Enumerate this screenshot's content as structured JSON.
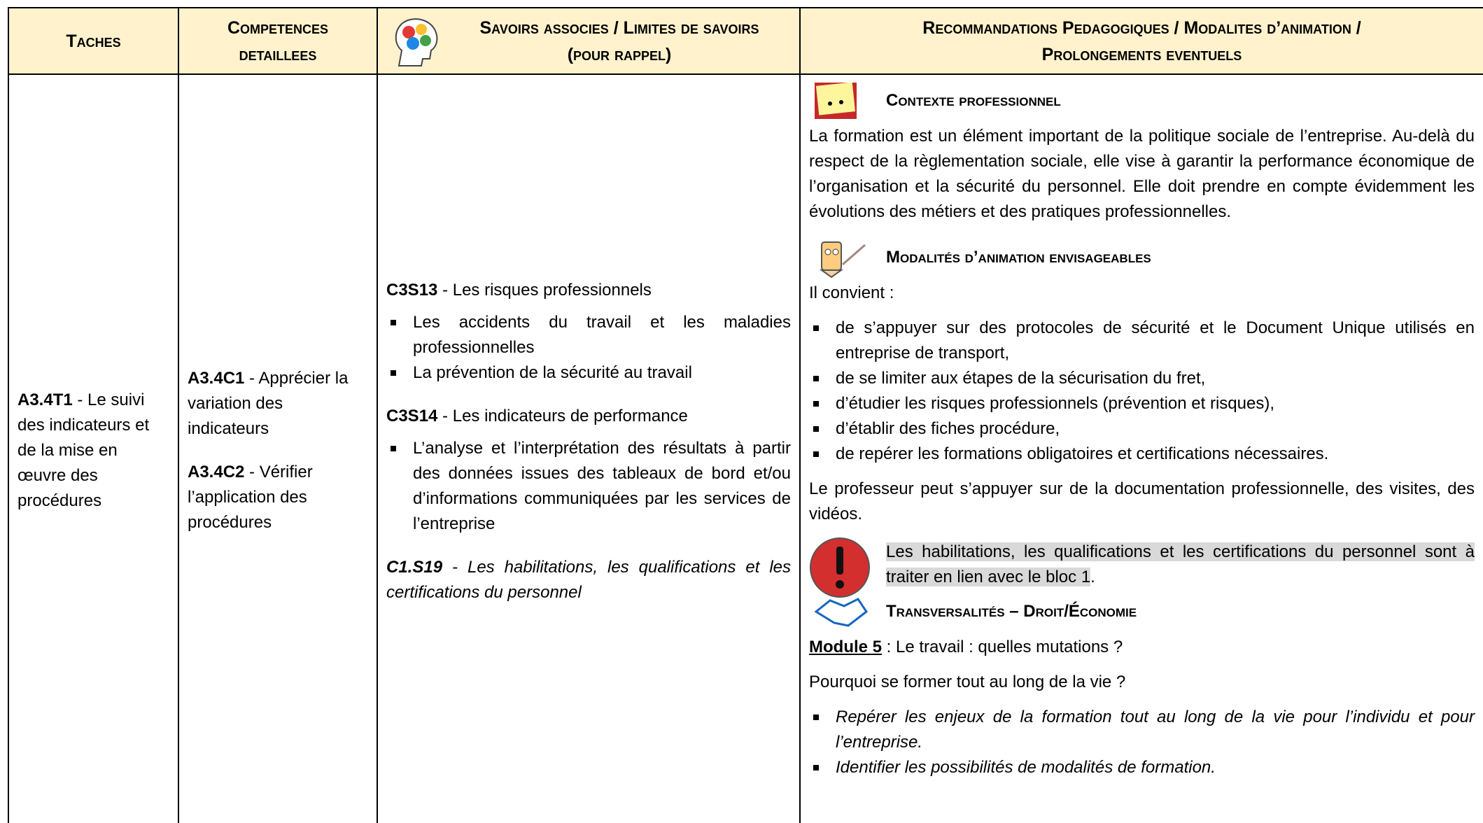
{
  "header": {
    "columns": [
      [
        "Taches"
      ],
      [
        "Competences",
        "detaillees"
      ],
      [
        "Savoirs associes / Limites de savoirs",
        "(pour rappel)"
      ],
      [
        "Recommandations Pedagogiques / Modalites d’animation /",
        "Prolongements eventuels"
      ]
    ]
  },
  "row": {
    "task": {
      "code": "A3.4T1",
      "text": " - Le suivi des indicateurs et de la mise en œuvre des procédures"
    },
    "competences": [
      {
        "code": "A3.4C1",
        "text": " - Apprécier la variation des indicateurs"
      },
      {
        "code": "A3.4C2",
        "text": " - Vérifier l’application des procédures"
      }
    ],
    "savoirs": [
      {
        "code": "C3S13",
        "text": " - Les risques professionnels",
        "italic": false,
        "bullets": [
          "Les accidents du travail et les maladies professionnelles",
          "La prévention de la sécurité au travail"
        ]
      },
      {
        "code": "C3S14",
        "text": " - Les indicateurs de performance",
        "italic": false,
        "bullets": [
          "L’analyse et l’interprétation des résultats à partir des données issues des tableaux de bord et/ou d’informations communiquées par les services de l’entreprise"
        ]
      },
      {
        "code": "C1.S19",
        "text": " - Les habilitations, les qualifications et les certifications du personnel",
        "italic": true,
        "bullets": []
      }
    ],
    "recommandations": {
      "contexte_title": "Contexte professionnel",
      "contexte_text": "La formation est un élément important de la politique sociale de l’entreprise. Au-delà du respect de la règlementation sociale, elle vise à garantir la performance économique de l’organisation et la sécurité du personnel. Elle doit prendre en compte évidemment les évolutions des métiers et des pratiques professionnelles.",
      "modalites_title": "Modalités d’animation envisageables",
      "intro": "Il convient :",
      "bullets": [
        "de s’appuyer sur des protocoles de sécurité et le Document Unique utilisés en entreprise de transport,",
        "de se limiter aux étapes de la sécurisation du fret,",
        "d’étudier les risques professionnels (prévention et risques),",
        "d’établir des fiches procédure,",
        "de repérer les formations obligatoires et certifications nécessaires."
      ],
      "documentation": "Le professeur peut s’appuyer sur de la documentation professionnelle, des visites, des vidéos.",
      "note": "Les habilitations, les qualifications et les certifications du personnel sont à traiter en lien avec le bloc 1",
      "note_end": ".",
      "transversalites_title": "Transversalités – Droit/Économie",
      "module_label": "Module 5",
      "module_text": " : Le travail : quelles mutations ?",
      "question": "Pourquoi se former tout au long de la vie ?",
      "objectives": [
        "Repérer les enjeux de la formation tout au long de la vie pour l’individu et pour l’entreprise.",
        "Identifier les possibilités de modalités de formation."
      ]
    }
  }
}
